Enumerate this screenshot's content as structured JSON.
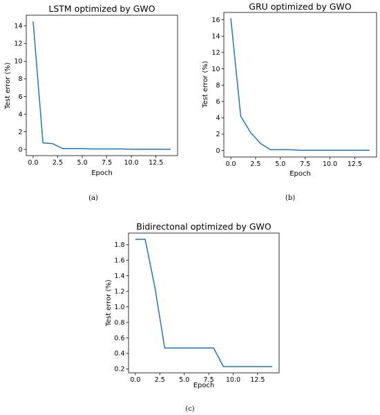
{
  "colors": {
    "line": "#1f77b4",
    "axis": "#000000",
    "background": "#ffffff"
  },
  "chart_data": [
    {
      "id": "a",
      "type": "line",
      "title": "LSTM optimized by GWO",
      "xlabel": "Epoch",
      "ylabel": "Test error (%)",
      "caption": "(a)",
      "xlim": [
        -0.7,
        14.7
      ],
      "ylim": [
        -0.7,
        15.2
      ],
      "xticks": [
        0.0,
        2.5,
        5.0,
        7.5,
        10.0,
        12.5
      ],
      "xtick_labels": [
        "0.0",
        "2.5",
        "5.0",
        "7.5",
        "10.0",
        "12.5"
      ],
      "yticks": [
        0,
        2,
        4,
        6,
        8,
        10,
        12,
        14
      ],
      "ytick_labels": [
        "0",
        "2",
        "4",
        "6",
        "8",
        "10",
        "12",
        "14"
      ],
      "grid": false,
      "series": [
        {
          "x": [
            0,
            1,
            2,
            3,
            4,
            5,
            6,
            7,
            8,
            9,
            10,
            11,
            12,
            13,
            14
          ],
          "values": [
            14.5,
            0.75,
            0.65,
            0.1,
            0.1,
            0.1,
            0.05,
            0.05,
            0.05,
            0.05,
            0.02,
            0.02,
            0.02,
            0.02,
            0.02
          ]
        }
      ]
    },
    {
      "id": "b",
      "type": "line",
      "title": "GRU optimized by GWO",
      "xlabel": "Epoch",
      "ylabel": "Test error (%)",
      "caption": "(b)",
      "xlim": [
        -0.7,
        14.7
      ],
      "ylim": [
        -0.8,
        16.9
      ],
      "xticks": [
        0.0,
        2.5,
        5.0,
        7.5,
        10.0,
        12.5
      ],
      "xtick_labels": [
        "0.0",
        "2.5",
        "5.0",
        "7.5",
        "10.0",
        "12.5"
      ],
      "yticks": [
        0,
        2,
        4,
        6,
        8,
        10,
        12,
        14,
        16
      ],
      "ytick_labels": [
        "0",
        "2",
        "4",
        "6",
        "8",
        "10",
        "12",
        "14",
        "16"
      ],
      "grid": false,
      "series": [
        {
          "x": [
            0,
            1,
            2,
            3,
            4,
            5,
            6,
            7,
            8,
            9,
            10,
            11,
            12,
            13,
            14
          ],
          "values": [
            16.2,
            4.2,
            2.2,
            0.85,
            0.1,
            0.1,
            0.1,
            0.03,
            0.03,
            0.03,
            0.03,
            0.03,
            0.03,
            0.03,
            0.03
          ]
        }
      ]
    },
    {
      "id": "c",
      "type": "line",
      "title": "Bidirectonal optimized by GWO",
      "xlabel": "Epoch",
      "ylabel": "Test error (%)",
      "caption": "(c)",
      "xlim": [
        -0.7,
        14.7
      ],
      "ylim": [
        0.15,
        1.95
      ],
      "xticks": [
        0.0,
        2.5,
        5.0,
        7.5,
        10.0,
        12.5
      ],
      "xtick_labels": [
        "0.0",
        "2.5",
        "5.0",
        "7.5",
        "10.0",
        "12.5"
      ],
      "yticks": [
        0.2,
        0.4,
        0.6,
        0.8,
        1.0,
        1.2,
        1.4,
        1.6,
        1.8
      ],
      "ytick_labels": [
        "0.2",
        "0.4",
        "0.6",
        "0.8",
        "1.0",
        "1.2",
        "1.4",
        "1.6",
        "1.8"
      ],
      "grid": false,
      "series": [
        {
          "x": [
            0,
            1,
            2,
            3,
            4,
            5,
            6,
            7,
            8,
            9,
            10,
            11,
            12,
            13,
            14
          ],
          "values": [
            1.87,
            1.87,
            1.25,
            0.47,
            0.47,
            0.47,
            0.47,
            0.47,
            0.47,
            0.23,
            0.23,
            0.23,
            0.23,
            0.23,
            0.23
          ]
        }
      ]
    }
  ]
}
